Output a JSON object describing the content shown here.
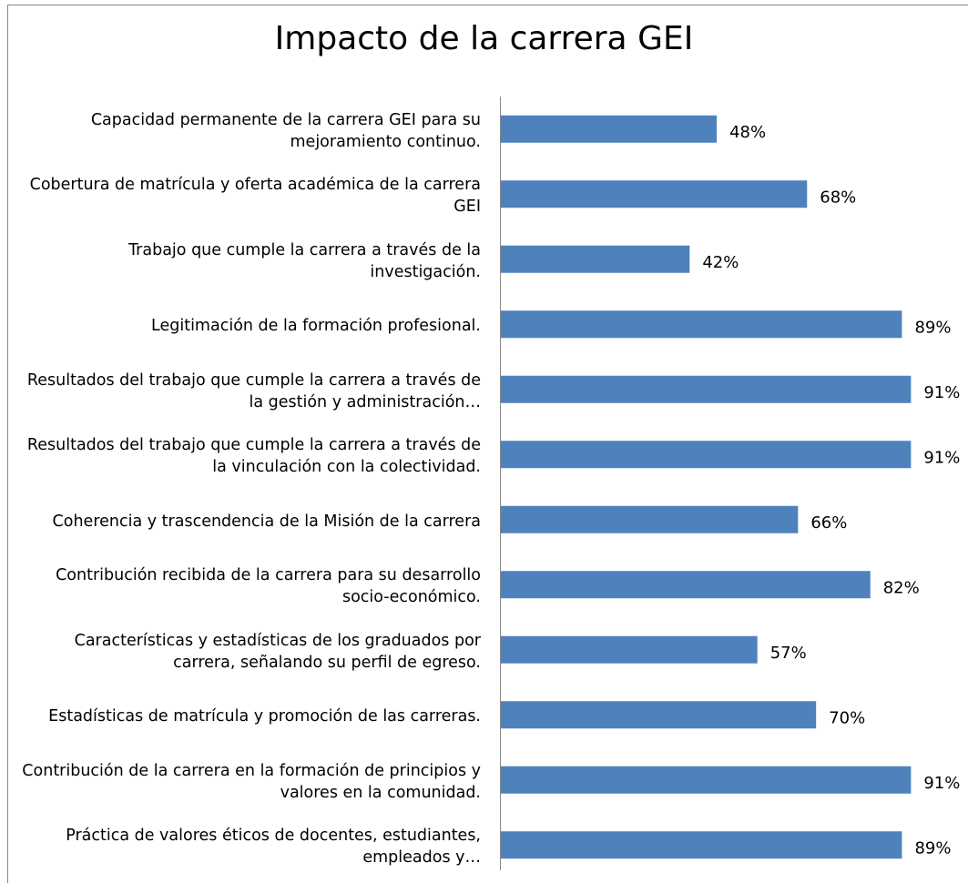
{
  "chart_data": {
    "type": "bar",
    "orientation": "horizontal",
    "title": "Impacto de la carrera GEI",
    "categories": [
      "Capacidad permanente de la carrera GEI para su mejoramiento continuo.",
      "Cobertura de matrícula y oferta académica de la carrera GEI",
      "Trabajo que cumple la carrera a través de la investigación.",
      "Legitimación de la formación profesional.",
      "Resultados del trabajo que cumple la carrera a través de la gestión y administración…",
      "Resultados del trabajo que cumple la carrera a través de la vinculación con la colectividad.",
      "Coherencia y trascendencia de la Misión de la carrera",
      "Contribución recibida de la carrera para su desarrollo socio-económico.",
      "Características y estadísticas de los graduados por carrera, señalando su perfil de egreso.",
      "Estadísticas de matrícula y promoción de las carreras.",
      "Contribución de la carrera en la formación de principios y valores en la comunidad.",
      "Práctica de valores éticos de docentes, estudiantes, empleados y…"
    ],
    "values": [
      48,
      68,
      42,
      89,
      91,
      91,
      66,
      82,
      57,
      70,
      91,
      89
    ],
    "value_labels": [
      "48%",
      "68%",
      "42%",
      "89%",
      "91%",
      "91%",
      "66%",
      "82%",
      "57%",
      "70%",
      "91%",
      "89%"
    ],
    "color": "#4f81bd",
    "xlim": [
      0,
      100
    ]
  }
}
